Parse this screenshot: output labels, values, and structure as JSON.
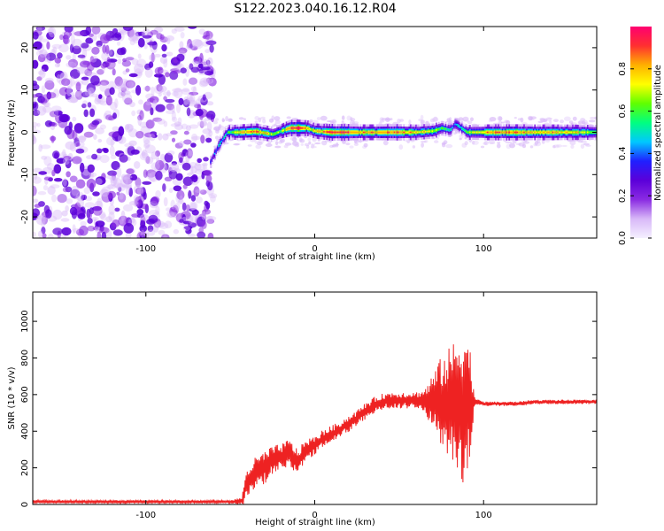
{
  "title": "S122.2023.040.16.12.R04",
  "chart_data": [
    {
      "type": "heatmap",
      "xlabel": "Height of straight line (km)",
      "ylabel": "Frequency (Hz)",
      "xlim": [
        -167,
        167
      ],
      "ylim": [
        -25,
        25
      ],
      "xticks": [
        "-100",
        "0",
        "100"
      ],
      "xtick_values": [
        -100,
        0,
        100
      ],
      "yticks": [
        "-20",
        "-10",
        "0",
        "10",
        "20"
      ],
      "ytick_values": [
        -20,
        -10,
        0,
        10,
        20
      ],
      "colorbar": {
        "label": "Normalized spectral amplitude",
        "range": [
          0,
          1
        ],
        "ticks": [
          "0.0",
          "0.2",
          "0.4",
          "0.6",
          "0.8"
        ],
        "tick_values": [
          0.0,
          0.2,
          0.4,
          0.6,
          0.8
        ],
        "colormap": [
          "#f5f0ff",
          "#d8b8f8",
          "#8a2be2",
          "#5b00d9",
          "#2020ff",
          "#00c8ff",
          "#00ff80",
          "#60ff00",
          "#ffff00",
          "#ffb000",
          "#ff3030",
          "#ff0070"
        ]
      },
      "noise_region_x": [
        -167,
        -60
      ],
      "ridge": {
        "x": [
          -62,
          -57,
          -52,
          -45,
          -35,
          -25,
          -20,
          -15,
          -10,
          -5,
          0,
          10,
          20,
          30,
          40,
          50,
          60,
          70,
          75,
          80,
          83,
          90,
          100,
          110,
          120,
          130,
          140,
          150,
          160,
          167
        ],
        "freq": [
          -7,
          -3,
          0,
          0,
          0.2,
          -0.5,
          0.3,
          1,
          1,
          1,
          0.3,
          0,
          0,
          0,
          0,
          0,
          0,
          0.3,
          1,
          0.5,
          2,
          0,
          0,
          0,
          0,
          0,
          0,
          0,
          0,
          0
        ],
        "amplitude": [
          0.35,
          0.45,
          0.55,
          0.8,
          0.85,
          0.7,
          0.6,
          0.9,
          0.95,
          0.8,
          0.7,
          0.95,
          0.9,
          0.8,
          0.85,
          0.9,
          0.75,
          0.7,
          0.6,
          0.55,
          0.4,
          0.65,
          0.8,
          0.85,
          0.85,
          0.8,
          0.8,
          0.75,
          0.7,
          0.65
        ]
      }
    },
    {
      "type": "line",
      "xlabel": "Height of straight line (km)",
      "ylabel": "SNR (10 * v/v)",
      "xlim": [
        -167,
        167
      ],
      "ylim": [
        0,
        1160
      ],
      "xticks": [
        "-100",
        "0",
        "100"
      ],
      "xtick_values": [
        -100,
        0,
        100
      ],
      "yticks": [
        "0",
        "200",
        "400",
        "600",
        "800",
        "1000"
      ],
      "ytick_values": [
        0,
        200,
        400,
        600,
        800,
        1000
      ],
      "color": "#ee2222",
      "series": [
        {
          "x": [
            -167,
            -130,
            -100,
            -70,
            -50,
            -43,
            -42,
            -40,
            -35,
            -30,
            -25,
            -20,
            -15,
            -10,
            -5,
            0,
            5,
            10,
            15,
            20,
            25,
            30,
            35,
            40,
            45,
            50,
            55,
            60,
            65,
            70,
            75,
            80,
            83,
            86,
            88,
            90,
            92,
            95,
            100,
            110,
            120,
            130,
            140,
            150,
            160,
            167
          ],
          "y": [
            15,
            15,
            15,
            15,
            15,
            20,
            60,
            120,
            170,
            200,
            240,
            260,
            280,
            230,
            300,
            320,
            360,
            380,
            410,
            440,
            470,
            510,
            540,
            560,
            570,
            570,
            570,
            570,
            570,
            560,
            560,
            560,
            560,
            560,
            560,
            560,
            560,
            560,
            550,
            550,
            550,
            560,
            560,
            560,
            560,
            560
          ],
          "spread": [
            8,
            8,
            8,
            8,
            8,
            20,
            60,
            80,
            90,
            90,
            80,
            70,
            80,
            70,
            60,
            50,
            50,
            50,
            45,
            45,
            45,
            45,
            45,
            45,
            45,
            45,
            45,
            45,
            60,
            160,
            250,
            300,
            350,
            400,
            450,
            400,
            300,
            20,
            12,
            12,
            12,
            12,
            12,
            12,
            12,
            12
          ]
        }
      ]
    }
  ]
}
